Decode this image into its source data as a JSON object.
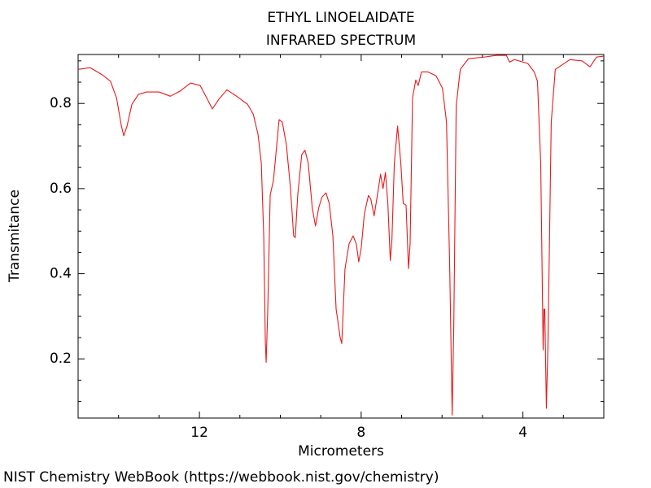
{
  "chart_data": {
    "type": "line",
    "title": "ETHYL LINOELAIDATE",
    "subtitle": "INFRARED SPECTRUM",
    "x_label": "Micrometers",
    "y_label": "Transmitance",
    "source": "NIST Chemistry WebBook (https://webbook.nist.gov/chemistry)",
    "color": "#e8191a",
    "xlim": [
      15,
      2
    ],
    "ylim": [
      0.061,
      0.915
    ],
    "xticks": [
      12,
      8,
      4
    ],
    "yticks": [
      0.2,
      0.4,
      0.6,
      0.8
    ],
    "xminorticks": [
      14,
      13,
      11,
      10,
      9,
      7,
      6,
      5,
      3
    ],
    "yminorticks": [
      0.1,
      0.15,
      0.25,
      0.3,
      0.35,
      0.45,
      0.5,
      0.55,
      0.65,
      0.7,
      0.75,
      0.85,
      0.9
    ],
    "x": [
      15.0,
      14.7,
      14.4,
      14.2,
      14.05,
      13.93,
      13.87,
      13.79,
      13.67,
      13.51,
      13.31,
      13.0,
      12.72,
      12.48,
      12.22,
      11.98,
      11.82,
      11.68,
      11.52,
      11.32,
      11.08,
      10.81,
      10.67,
      10.55,
      10.47,
      10.41,
      10.37,
      10.35,
      10.31,
      10.25,
      10.17,
      10.11,
      10.03,
      9.95,
      9.85,
      9.75,
      9.67,
      9.63,
      9.57,
      9.47,
      9.39,
      9.31,
      9.21,
      9.13,
      9.05,
      8.97,
      8.87,
      8.79,
      8.7,
      8.62,
      8.52,
      8.48,
      8.4,
      8.3,
      8.2,
      8.12,
      8.06,
      8.0,
      7.92,
      7.82,
      7.76,
      7.68,
      7.6,
      7.52,
      7.46,
      7.4,
      7.34,
      7.28,
      7.24,
      7.18,
      7.1,
      7.02,
      6.96,
      6.89,
      6.83,
      6.79,
      6.73,
      6.65,
      6.59,
      6.51,
      6.35,
      6.15,
      5.99,
      5.89,
      5.81,
      5.75,
      5.71,
      5.65,
      5.55,
      5.35,
      4.95,
      4.65,
      4.41,
      4.33,
      4.21,
      3.88,
      3.72,
      3.64,
      3.56,
      3.5,
      3.48,
      3.46,
      3.42,
      3.38,
      3.3,
      3.2,
      3.04,
      2.84,
      2.54,
      2.34,
      2.18,
      2.0
    ],
    "values": [
      0.88,
      0.884,
      0.867,
      0.852,
      0.813,
      0.747,
      0.724,
      0.747,
      0.798,
      0.821,
      0.827,
      0.827,
      0.817,
      0.829,
      0.848,
      0.842,
      0.813,
      0.787,
      0.81,
      0.832,
      0.817,
      0.798,
      0.775,
      0.727,
      0.66,
      0.489,
      0.24,
      0.192,
      0.317,
      0.585,
      0.619,
      0.68,
      0.762,
      0.756,
      0.703,
      0.603,
      0.489,
      0.485,
      0.584,
      0.68,
      0.69,
      0.66,
      0.555,
      0.512,
      0.555,
      0.58,
      0.59,
      0.565,
      0.489,
      0.317,
      0.25,
      0.236,
      0.412,
      0.47,
      0.489,
      0.47,
      0.428,
      0.46,
      0.542,
      0.584,
      0.575,
      0.536,
      0.584,
      0.634,
      0.6,
      0.638,
      0.565,
      0.431,
      0.479,
      0.66,
      0.747,
      0.66,
      0.565,
      0.561,
      0.412,
      0.47,
      0.813,
      0.855,
      0.842,
      0.874,
      0.874,
      0.865,
      0.836,
      0.756,
      0.412,
      0.068,
      0.278,
      0.794,
      0.88,
      0.905,
      0.909,
      0.913,
      0.913,
      0.897,
      0.903,
      0.894,
      0.874,
      0.852,
      0.66,
      0.221,
      0.317,
      0.317,
      0.084,
      0.24,
      0.756,
      0.88,
      0.89,
      0.903,
      0.9,
      0.886,
      0.909,
      0.911
    ]
  }
}
